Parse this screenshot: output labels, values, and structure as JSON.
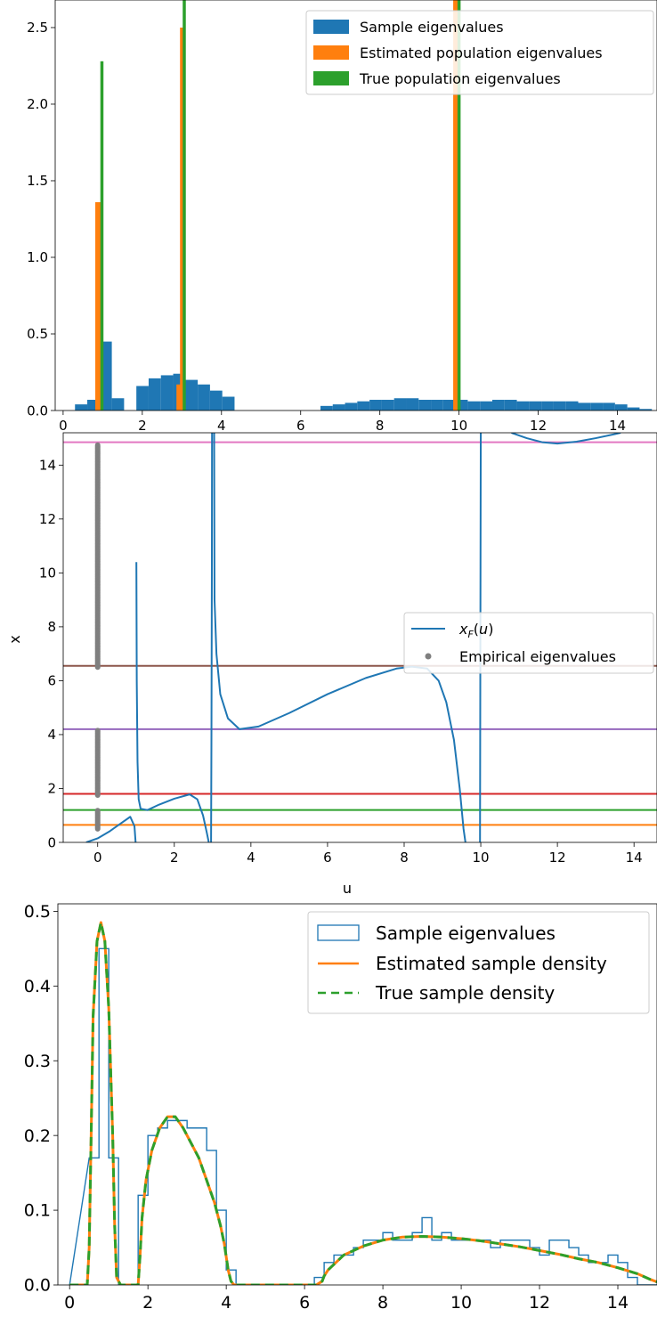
{
  "colors": {
    "blue": "#1f77b4",
    "orange": "#ff7f0e",
    "green": "#2ca02c",
    "red": "#d62728",
    "purple": "#9467bd",
    "brown": "#8c564b",
    "pink": "#e377c2",
    "gray": "#7f7f7f"
  },
  "chart_data": [
    {
      "type": "bar",
      "xlim": [
        -0.2,
        15
      ],
      "ylim": [
        0,
        2.68
      ],
      "xticks": [
        "0",
        "2",
        "4",
        "6",
        "8",
        "10",
        "12",
        "14"
      ],
      "yticks": [
        "0.0",
        "0.5",
        "1.0",
        "1.5",
        "2.0",
        "2.5"
      ],
      "legend": {
        "placement": "top-right",
        "entries": [
          "Sample eigenvalues",
          "Estimated population eigenvalues",
          "True population eigenvalues"
        ]
      },
      "series": [
        {
          "name": "Sample eigenvalues",
          "kind": "histogram",
          "bin_width": 0.31,
          "bin_starts": [
            0.3,
            0.61,
            0.92,
            1.23,
            1.54,
            1.85,
            2.16,
            2.47,
            2.78,
            3.09,
            3.4,
            3.71,
            4.02,
            4.33,
            4.64,
            4.95,
            5.26,
            5.57,
            5.88,
            6.19,
            6.5,
            6.81,
            7.12,
            7.43,
            7.74,
            8.05,
            8.36,
            8.67,
            8.98,
            9.29,
            9.6,
            9.91,
            10.22,
            10.53,
            10.84,
            11.15,
            11.46,
            11.77,
            12.08,
            12.39,
            12.7,
            13.01,
            13.32,
            13.63,
            13.94,
            14.25,
            14.56
          ],
          "values": [
            0.04,
            0.07,
            0.45,
            0.08,
            0.0,
            0.16,
            0.21,
            0.23,
            0.24,
            0.2,
            0.17,
            0.13,
            0.09,
            0.0,
            0.0,
            0.0,
            0.0,
            0.0,
            0.0,
            0.0,
            0.03,
            0.04,
            0.05,
            0.06,
            0.07,
            0.07,
            0.08,
            0.08,
            0.07,
            0.07,
            0.07,
            0.07,
            0.06,
            0.06,
            0.07,
            0.07,
            0.06,
            0.06,
            0.06,
            0.06,
            0.06,
            0.05,
            0.05,
            0.05,
            0.04,
            0.02,
            0.01
          ]
        },
        {
          "name": "Estimated population eigenvalues",
          "kind": "spikes",
          "x": [
            0.88,
            2.93,
            3.02,
            9.92
          ],
          "values": [
            1.36,
            0.17,
            2.5,
            2.68
          ]
        },
        {
          "name": "True population eigenvalues",
          "kind": "spikes",
          "x": [
            0.98,
            3.06,
            10.0
          ],
          "values": [
            2.28,
            2.68,
            2.68
          ]
        }
      ]
    },
    {
      "type": "line",
      "xlabel": "u",
      "ylabel": "x",
      "xlim": [
        -0.9,
        14.6
      ],
      "ylim": [
        0,
        15.2
      ],
      "xticks": [
        "0",
        "2",
        "4",
        "6",
        "8",
        "10",
        "12",
        "14"
      ],
      "yticks": [
        "0",
        "2",
        "4",
        "6",
        "8",
        "10",
        "12",
        "14"
      ],
      "legend": {
        "placement": "center-right",
        "entries": [
          "x_F(u)",
          "Empirical eigenvalues"
        ]
      },
      "hlines": [
        0.65,
        1.2,
        1.8,
        4.2,
        6.55,
        14.85
      ],
      "empirical_eigenvalue_ranges": [
        [
          0.5,
          1.2
        ],
        [
          1.75,
          4.15
        ],
        [
          6.5,
          14.75
        ]
      ],
      "curve": [
        [
          [
            -0.3,
            0.0
          ],
          [
            0.0,
            0.15
          ],
          [
            0.3,
            0.4
          ],
          [
            0.6,
            0.7
          ],
          [
            0.85,
            0.95
          ],
          [
            0.96,
            0.6
          ],
          [
            0.99,
            0.0
          ]
        ],
        [
          [
            1.01,
            10.4
          ],
          [
            1.02,
            6.0
          ],
          [
            1.04,
            3.0
          ],
          [
            1.07,
            1.6
          ],
          [
            1.12,
            1.25
          ],
          [
            1.3,
            1.2
          ],
          [
            1.6,
            1.4
          ],
          [
            2.0,
            1.62
          ],
          [
            2.4,
            1.78
          ],
          [
            2.6,
            1.6
          ],
          [
            2.75,
            1.0
          ],
          [
            2.85,
            0.35
          ],
          [
            2.9,
            0.0
          ]
        ],
        [
          [
            2.96,
            0.0
          ],
          [
            2.97,
            4.0
          ],
          [
            2.98,
            10.0
          ],
          [
            2.985,
            15.2
          ]
        ],
        [
          [
            3.04,
            15.2
          ],
          [
            3.05,
            9.0
          ],
          [
            3.1,
            7.0
          ],
          [
            3.2,
            5.5
          ],
          [
            3.4,
            4.6
          ],
          [
            3.7,
            4.2
          ],
          [
            4.2,
            4.3
          ],
          [
            5.0,
            4.8
          ],
          [
            6.0,
            5.5
          ],
          [
            7.0,
            6.1
          ],
          [
            7.8,
            6.45
          ],
          [
            8.2,
            6.52
          ],
          [
            8.6,
            6.45
          ],
          [
            8.9,
            6.0
          ],
          [
            9.1,
            5.2
          ],
          [
            9.3,
            3.8
          ],
          [
            9.45,
            2.0
          ],
          [
            9.55,
            0.5
          ],
          [
            9.6,
            0.0
          ]
        ],
        [
          [
            9.98,
            0.0
          ],
          [
            9.99,
            8.0
          ],
          [
            10.0,
            15.2
          ]
        ],
        [
          [
            10.8,
            15.2
          ],
          [
            11.2,
            15.0
          ],
          [
            11.6,
            14.85
          ],
          [
            12.0,
            14.8
          ],
          [
            12.5,
            14.87
          ],
          [
            13.0,
            15.0
          ],
          [
            13.5,
            15.15
          ],
          [
            13.65,
            15.2
          ]
        ]
      ]
    },
    {
      "type": "line",
      "xlim": [
        -0.3,
        15
      ],
      "ylim": [
        0,
        0.51
      ],
      "xticks": [
        "0",
        "2",
        "4",
        "6",
        "8",
        "10",
        "12",
        "14"
      ],
      "yticks": [
        "0.0",
        "0.1",
        "0.2",
        "0.3",
        "0.4",
        "0.5"
      ],
      "legend": {
        "placement": "top-right",
        "entries": [
          "Sample eigenvalues",
          "Estimated sample density",
          "True sample density"
        ]
      },
      "histogram": {
        "name": "Sample eigenvalues",
        "bin_width": 0.25,
        "bin_starts": [
          0.5,
          0.75,
          1.0,
          1.25,
          1.5,
          1.75,
          2.0,
          2.25,
          2.5,
          2.75,
          3.0,
          3.25,
          3.5,
          3.75,
          4.0,
          4.25,
          4.5,
          4.75,
          5.0,
          5.25,
          5.5,
          5.75,
          6.0,
          6.25,
          6.5,
          6.75,
          7.0,
          7.25,
          7.5,
          7.75,
          8.0,
          8.25,
          8.5,
          8.75,
          9.0,
          9.25,
          9.5,
          9.75,
          10.0,
          10.25,
          10.5,
          10.75,
          11.0,
          11.25,
          11.5,
          11.75,
          12.0,
          12.25,
          12.5,
          12.75,
          13.0,
          13.25,
          13.5,
          13.75,
          14.0,
          14.25,
          14.5
        ],
        "values": [
          0.17,
          0.45,
          0.17,
          0.0,
          0.0,
          0.12,
          0.2,
          0.21,
          0.22,
          0.22,
          0.21,
          0.21,
          0.18,
          0.1,
          0.02,
          0.0,
          0.0,
          0.0,
          0.0,
          0.0,
          0.0,
          0.0,
          0.0,
          0.01,
          0.03,
          0.04,
          0.04,
          0.05,
          0.06,
          0.06,
          0.07,
          0.06,
          0.06,
          0.07,
          0.09,
          0.06,
          0.07,
          0.06,
          0.06,
          0.06,
          0.06,
          0.05,
          0.06,
          0.06,
          0.06,
          0.05,
          0.04,
          0.06,
          0.06,
          0.05,
          0.04,
          0.03,
          0.03,
          0.04,
          0.03,
          0.01,
          0.0
        ]
      },
      "estimated_density": {
        "name": "Estimated sample density",
        "x": [
          0.0,
          0.45,
          0.5,
          0.55,
          0.6,
          0.7,
          0.8,
          0.9,
          1.0,
          1.1,
          1.15,
          1.2,
          1.3,
          1.75,
          1.8,
          1.85,
          1.95,
          2.1,
          2.3,
          2.5,
          2.7,
          2.9,
          3.1,
          3.3,
          3.5,
          3.7,
          3.85,
          3.95,
          4.05,
          4.12,
          4.2,
          4.5,
          6.3,
          6.45,
          6.5,
          6.6,
          6.8,
          7.0,
          7.5,
          8.0,
          8.5,
          9.0,
          9.5,
          10.0,
          10.5,
          11.0,
          11.5,
          12.0,
          12.5,
          13.0,
          13.5,
          14.0,
          14.5,
          14.8,
          15.0
        ],
        "values": [
          0.0,
          0.0,
          0.05,
          0.2,
          0.36,
          0.46,
          0.485,
          0.46,
          0.37,
          0.2,
          0.08,
          0.01,
          0.0,
          0.0,
          0.04,
          0.09,
          0.14,
          0.18,
          0.21,
          0.225,
          0.225,
          0.21,
          0.19,
          0.17,
          0.14,
          0.11,
          0.08,
          0.055,
          0.02,
          0.005,
          0.0,
          0.0,
          0.0,
          0.005,
          0.012,
          0.02,
          0.03,
          0.04,
          0.052,
          0.06,
          0.064,
          0.065,
          0.064,
          0.062,
          0.059,
          0.055,
          0.051,
          0.046,
          0.041,
          0.035,
          0.03,
          0.023,
          0.015,
          0.008,
          0.004
        ]
      },
      "true_density": {
        "name": "True sample density",
        "x": [
          0.0,
          0.45,
          0.5,
          0.55,
          0.6,
          0.7,
          0.8,
          0.9,
          1.0,
          1.1,
          1.15,
          1.2,
          1.3,
          1.75,
          1.8,
          1.85,
          1.95,
          2.1,
          2.3,
          2.5,
          2.7,
          2.9,
          3.1,
          3.3,
          3.5,
          3.7,
          3.85,
          3.95,
          4.05,
          4.12,
          4.2,
          4.5,
          6.3,
          6.45,
          6.5,
          6.6,
          6.8,
          7.0,
          7.5,
          8.0,
          8.5,
          9.0,
          9.5,
          10.0,
          10.5,
          11.0,
          11.5,
          12.0,
          12.5,
          13.0,
          13.5,
          14.0,
          14.5,
          14.8,
          15.0
        ],
        "values": [
          0.0,
          0.0,
          0.05,
          0.2,
          0.36,
          0.46,
          0.485,
          0.46,
          0.37,
          0.2,
          0.08,
          0.01,
          0.0,
          0.0,
          0.04,
          0.09,
          0.14,
          0.18,
          0.21,
          0.225,
          0.225,
          0.21,
          0.19,
          0.17,
          0.14,
          0.11,
          0.08,
          0.055,
          0.02,
          0.005,
          0.0,
          0.0,
          0.0,
          0.005,
          0.012,
          0.02,
          0.03,
          0.04,
          0.052,
          0.06,
          0.064,
          0.065,
          0.064,
          0.062,
          0.059,
          0.055,
          0.051,
          0.046,
          0.041,
          0.035,
          0.03,
          0.023,
          0.015,
          0.008,
          0.004
        ]
      }
    }
  ]
}
